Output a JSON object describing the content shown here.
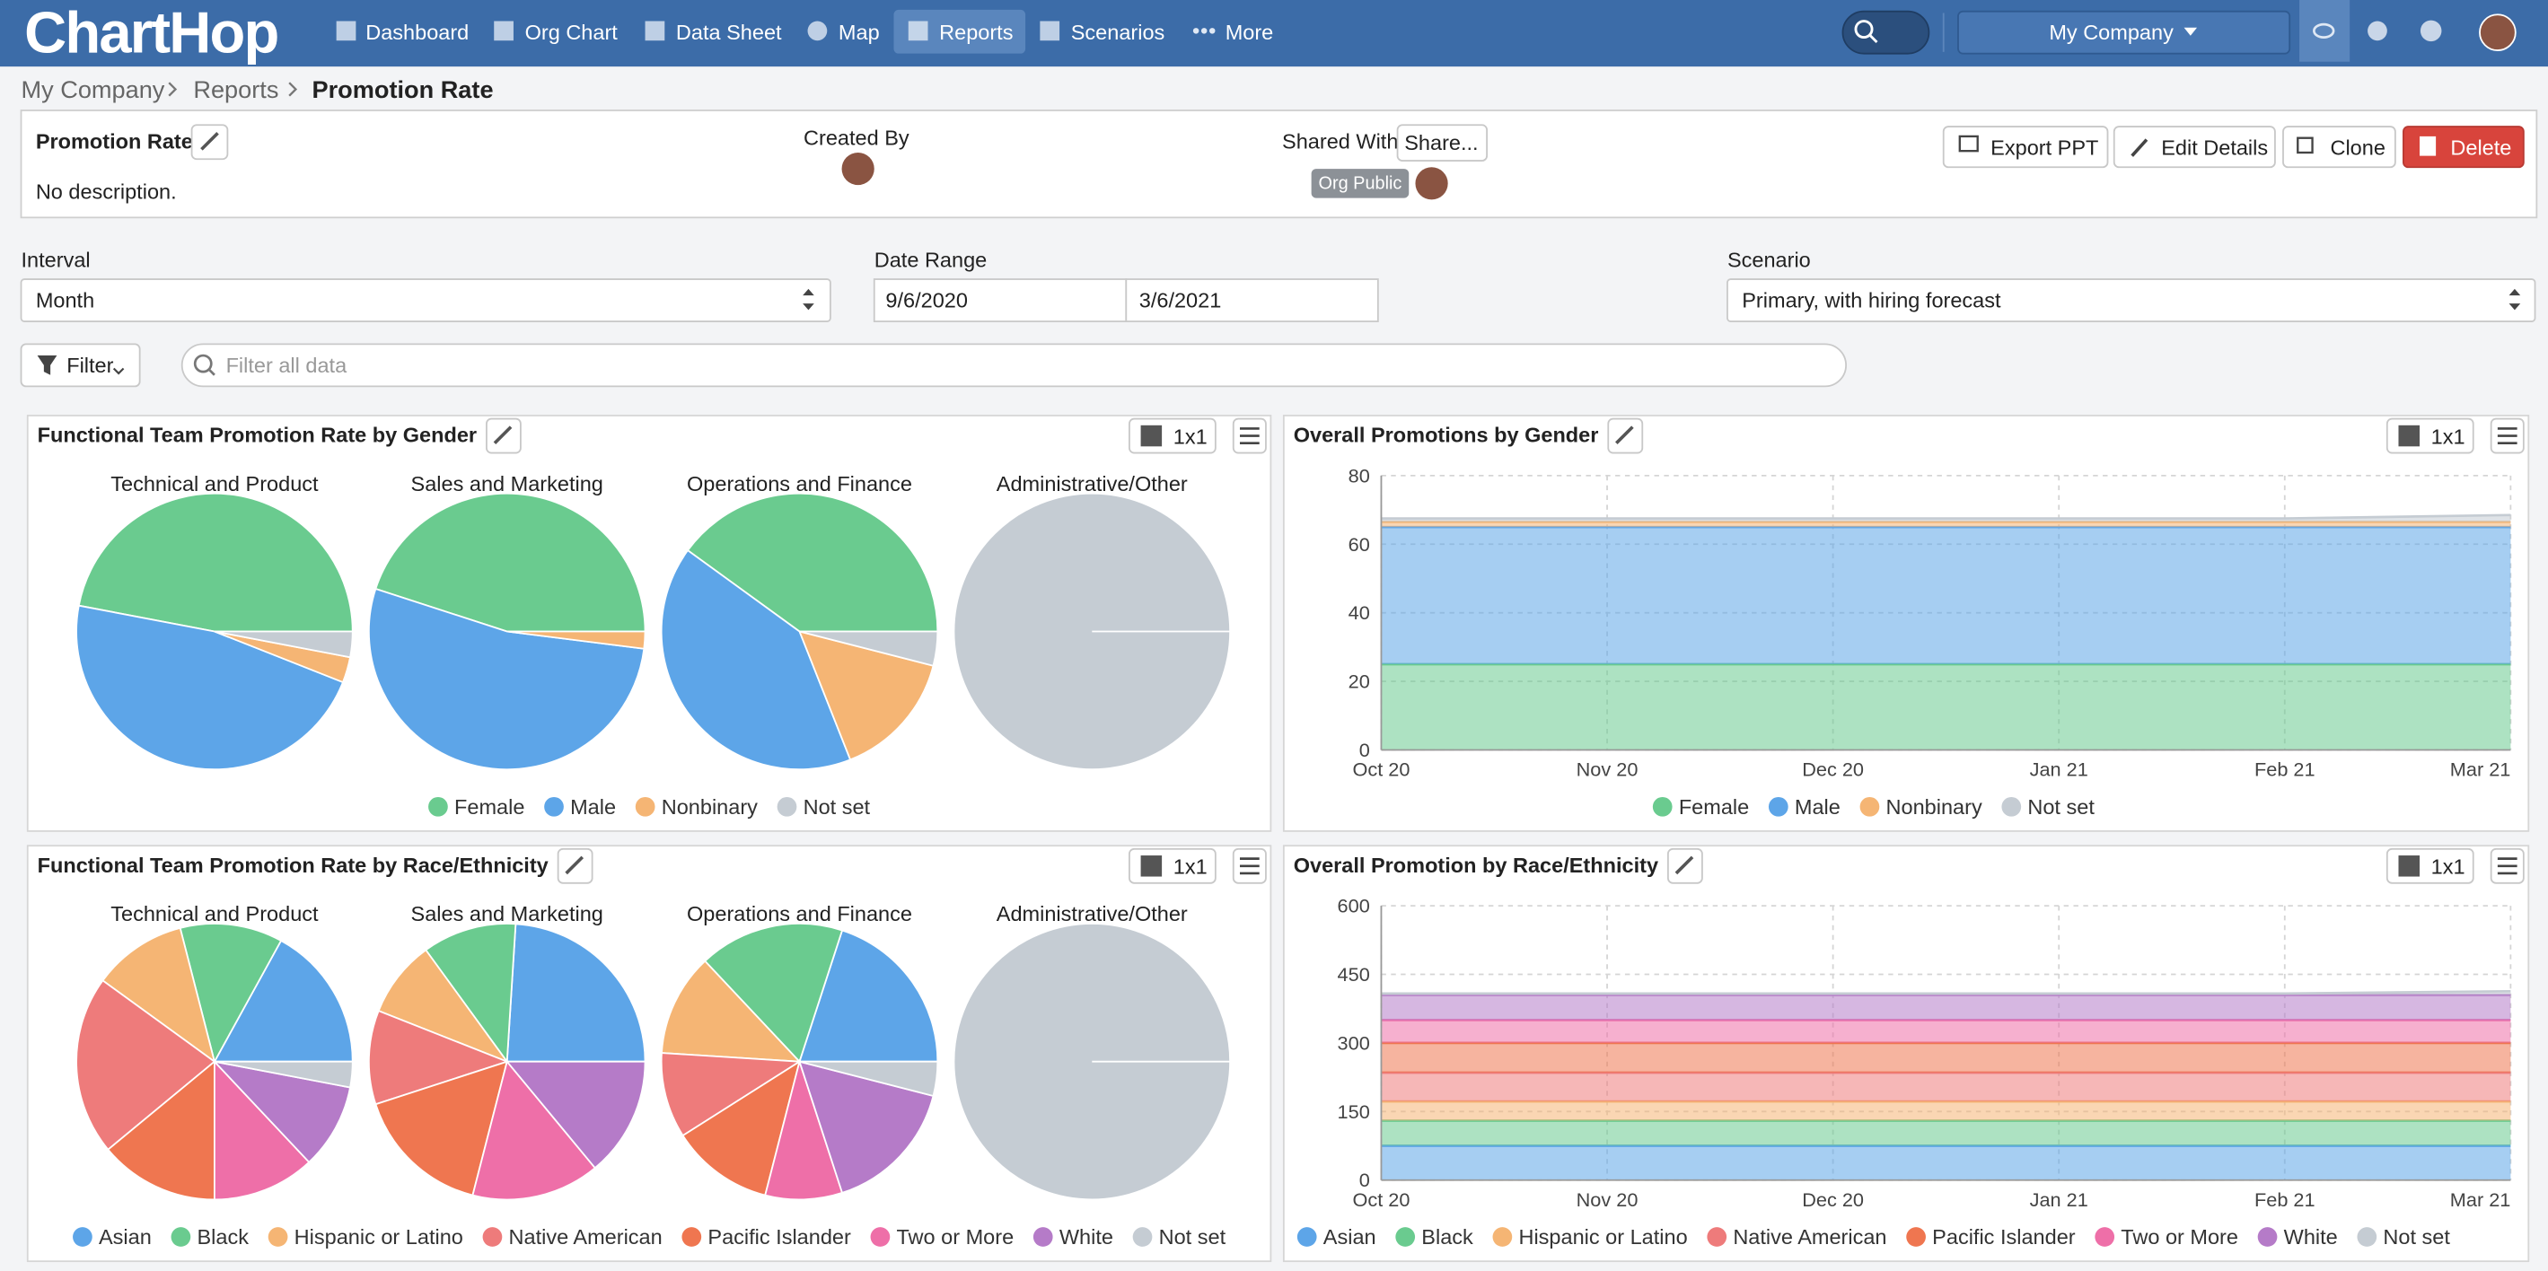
{
  "nav": {
    "logo": "ChartHop",
    "items": [
      "Dashboard",
      "Org Chart",
      "Data Sheet",
      "Map",
      "Reports",
      "Scenarios",
      "More"
    ],
    "company": "My Company"
  },
  "breadcrumb": [
    "My Company",
    "Reports",
    "Promotion Rate"
  ],
  "report": {
    "title": "Promotion Rate",
    "description": "No description.",
    "created_by_label": "Created By",
    "shared_with_label": "Shared With",
    "share_button": "Share...",
    "share_tag": "Org Public",
    "actions": [
      "Export PPT",
      "Edit Details",
      "Clone",
      "Delete"
    ]
  },
  "controls": {
    "interval_label": "Interval",
    "interval": "Month",
    "date_range_label": "Date Range",
    "date_start": "9/6/2020",
    "date_end": "3/6/2021",
    "scenario_label": "Scenario",
    "scenario": "Primary, with hiring forecast",
    "filter_button": "Filter",
    "search_placeholder": "Filter all data"
  },
  "panel_size": "1x1",
  "chart_data": [
    {
      "type": "pie",
      "title": "Functional Team Promotion Rate by Gender",
      "categories": [
        "Technical and Product",
        "Sales and Marketing",
        "Operations and Finance",
        "Administrative/Other"
      ],
      "series": [
        {
          "name": "Female",
          "color": "#6acb8f",
          "values": [
            47,
            45,
            40,
            0
          ]
        },
        {
          "name": "Male",
          "color": "#5da5e8",
          "values": [
            47,
            53,
            41,
            0
          ]
        },
        {
          "name": "Nonbinary",
          "color": "#f5b574",
          "values": [
            3,
            2,
            15,
            0
          ]
        },
        {
          "name": "Not set",
          "color": "#c5ccd3",
          "values": [
            3,
            0,
            4,
            100
          ]
        }
      ]
    },
    {
      "type": "area",
      "title": "Overall Promotions by Gender",
      "categories": [
        "Oct 20",
        "Nov 20",
        "Dec 20",
        "Jan 21",
        "Feb 21",
        "Mar 21"
      ],
      "ylim": [
        0,
        80
      ],
      "yticks": [
        0,
        20,
        40,
        60,
        80
      ],
      "grid": true,
      "stacked": true,
      "series": [
        {
          "name": "Female",
          "color": "#6acb8f",
          "values": [
            25,
            25,
            25,
            25,
            25,
            25
          ]
        },
        {
          "name": "Male",
          "color": "#5da5e8",
          "values": [
            40,
            40,
            40,
            40,
            40,
            40
          ]
        },
        {
          "name": "Nonbinary",
          "color": "#f5b574",
          "values": [
            1.5,
            1.5,
            1.5,
            1.5,
            1.5,
            1.5
          ]
        },
        {
          "name": "Not set",
          "color": "#c5ccd3",
          "values": [
            1,
            1,
            1,
            1,
            1,
            2
          ]
        }
      ]
    },
    {
      "type": "pie",
      "title": "Functional Team Promotion Rate by Race/Ethnicity",
      "categories": [
        "Technical and Product",
        "Sales and Marketing",
        "Operations and Finance",
        "Administrative/Other"
      ],
      "series": [
        {
          "name": "Asian",
          "color": "#5da5e8",
          "values": [
            17,
            24,
            20,
            0
          ]
        },
        {
          "name": "Black",
          "color": "#6acb8f",
          "values": [
            12,
            11,
            17,
            0
          ]
        },
        {
          "name": "Hispanic or Latino",
          "color": "#f5b574",
          "values": [
            11,
            9,
            12,
            0
          ]
        },
        {
          "name": "Native American",
          "color": "#ee7b7b",
          "values": [
            21,
            11,
            10,
            0
          ]
        },
        {
          "name": "Pacific Islander",
          "color": "#ef7650",
          "values": [
            14,
            16,
            12,
            0
          ]
        },
        {
          "name": "Two or More",
          "color": "#ee6fa8",
          "values": [
            12,
            15,
            9,
            0
          ]
        },
        {
          "name": "White",
          "color": "#b57bc8",
          "values": [
            10,
            14,
            16,
            0
          ]
        },
        {
          "name": "Not set",
          "color": "#c5ccd3",
          "values": [
            3,
            0,
            4,
            100
          ]
        }
      ]
    },
    {
      "type": "area",
      "title": "Overall Promotion by Race/Ethnicity",
      "categories": [
        "Oct 20",
        "Nov 20",
        "Dec 20",
        "Jan 21",
        "Feb 21",
        "Mar 21"
      ],
      "ylim": [
        0,
        600
      ],
      "yticks": [
        0,
        150,
        300,
        450,
        600
      ],
      "grid": true,
      "stacked": true,
      "series": [
        {
          "name": "Asian",
          "color": "#5da5e8",
          "values": [
            75,
            75,
            75,
            75,
            75,
            75
          ]
        },
        {
          "name": "Black",
          "color": "#6acb8f",
          "values": [
            55,
            55,
            55,
            55,
            55,
            55
          ]
        },
        {
          "name": "Hispanic or Latino",
          "color": "#f5b574",
          "values": [
            42,
            42,
            42,
            42,
            42,
            42
          ]
        },
        {
          "name": "Native American",
          "color": "#ee7b7b",
          "values": [
            63,
            63,
            63,
            63,
            63,
            63
          ]
        },
        {
          "name": "Pacific Islander",
          "color": "#ef7650",
          "values": [
            65,
            65,
            65,
            65,
            65,
            65
          ]
        },
        {
          "name": "Two or More",
          "color": "#ee6fa8",
          "values": [
            50,
            50,
            50,
            50,
            50,
            50
          ]
        },
        {
          "name": "White",
          "color": "#b57bc8",
          "values": [
            55,
            55,
            55,
            55,
            55,
            55
          ]
        },
        {
          "name": "Not set",
          "color": "#c5ccd3",
          "values": [
            3,
            3,
            3,
            3,
            3,
            8
          ]
        }
      ]
    }
  ]
}
